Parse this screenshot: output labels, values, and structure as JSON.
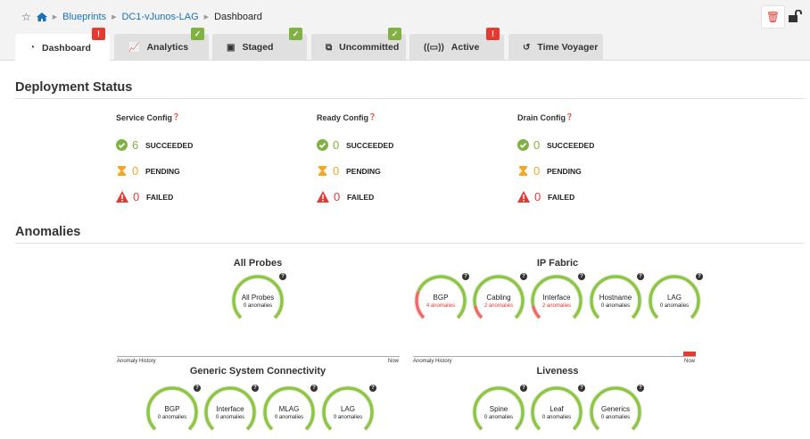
{
  "breadcrumb": {
    "items": [
      "Blueprints",
      "DC1-vJunos-LAG"
    ],
    "current": "Dashboard"
  },
  "tabs": [
    {
      "label": "Dashboard",
      "icon": "dashboard-icon",
      "status": "warning",
      "active": true
    },
    {
      "label": "Analytics",
      "icon": "chart-line-icon",
      "status": "ok"
    },
    {
      "label": "Staged",
      "icon": "staged-icon",
      "status": "ok"
    },
    {
      "label": "Uncommitted",
      "icon": "uncommitted-icon",
      "status": "ok"
    },
    {
      "label": "Active",
      "icon": "active-icon",
      "status": "warning"
    },
    {
      "label": "Time Voyager",
      "icon": "history-icon"
    }
  ],
  "deployment": {
    "title": "Deployment Status",
    "columns": [
      {
        "title": "Service Config",
        "succeeded": "6",
        "pending": "0",
        "failed": "0"
      },
      {
        "title": "Ready Config",
        "succeeded": "0",
        "pending": "0",
        "failed": "0"
      },
      {
        "title": "Drain Config",
        "succeeded": "0",
        "pending": "0",
        "failed": "0"
      }
    ],
    "labels": {
      "succeeded": "SUCCEEDED",
      "pending": "PENDING",
      "failed": "FAILED"
    }
  },
  "anomalies": {
    "title": "Anomalies",
    "history_label": "Anomaly History",
    "now_label": "Now",
    "groups": [
      {
        "title": "All Probes",
        "gauges": [
          {
            "name": "All Probes",
            "count": "0 anomalies",
            "fraction": 0
          }
        ]
      },
      {
        "title": "IP Fabric",
        "gauges": [
          {
            "name": "BGP",
            "count": "4 anomalies",
            "fraction": 0.25
          },
          {
            "name": "Cabling",
            "count": "2 anomalies",
            "fraction": 0.12
          },
          {
            "name": "Interface",
            "count": "2 anomalies",
            "fraction": 0.12
          },
          {
            "name": "Hostname",
            "count": "0 anomalies",
            "fraction": 0
          },
          {
            "name": "LAG",
            "count": "0 anomalies",
            "fraction": 0
          }
        ]
      },
      {
        "title": "Generic System Connectivity",
        "gauges": [
          {
            "name": "BGP",
            "count": "0 anomalies",
            "fraction": 0
          },
          {
            "name": "Interface",
            "count": "0 anomalies",
            "fraction": 0
          },
          {
            "name": "MLAG",
            "count": "0 anomalies",
            "fraction": 0
          },
          {
            "name": "LAG",
            "count": "0 anomalies",
            "fraction": 0
          }
        ]
      },
      {
        "title": "Liveness",
        "gauges": [
          {
            "name": "Spine",
            "count": "0 anomalies",
            "fraction": 0
          },
          {
            "name": "Leaf",
            "count": "0 anomalies",
            "fraction": 0
          },
          {
            "name": "Generics",
            "count": "0 anomalies",
            "fraction": 0
          }
        ]
      }
    ]
  },
  "colors": {
    "ok": "#7fb241",
    "warn": "#e53a2f",
    "pending": "#f5a623",
    "link": "#1a73b5"
  }
}
